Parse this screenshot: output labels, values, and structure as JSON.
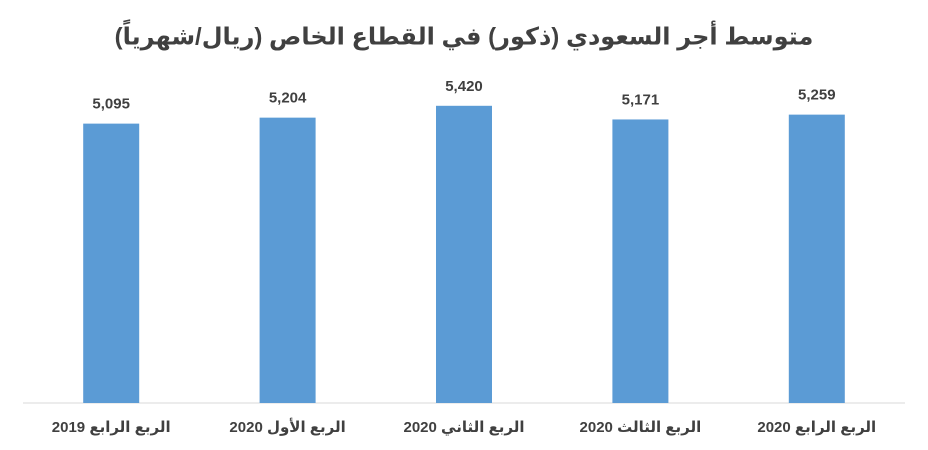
{
  "chart_data": {
    "type": "bar",
    "title": "متوسط أجر السعودي (ذكور) في القطاع الخاص (ريال/شهرياً)",
    "categories": [
      "الربع الرابع 2019",
      "الربع الأول 2020",
      "الربع الثاني 2020",
      "الربع الثالث 2020",
      "الربع الرابع 2020"
    ],
    "values": [
      5095,
      5204,
      5420,
      5171,
      5259
    ],
    "value_labels": [
      "5,095",
      "5,204",
      "5,420",
      "5,171",
      "5,259"
    ],
    "color": "#5b9bd5",
    "ylim": [
      0,
      6000
    ]
  }
}
